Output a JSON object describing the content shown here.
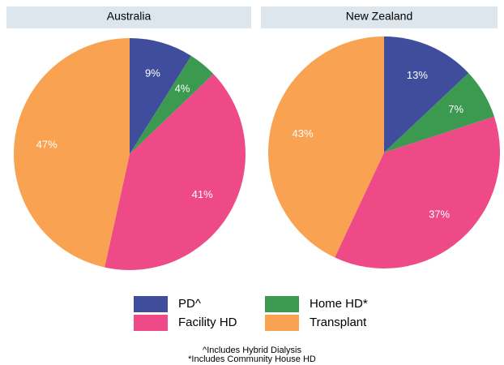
{
  "chart_data": [
    {
      "type": "pie",
      "title": "Australia",
      "categories": [
        "PD^",
        "Home HD*",
        "Facility HD",
        "Transplant"
      ],
      "values": [
        9,
        4,
        41,
        47
      ],
      "value_labels": [
        "9%",
        "4%",
        "41%",
        "47%"
      ],
      "colors": [
        "#3f4d9c",
        "#3c9a50",
        "#ee4a87",
        "#f9a352"
      ]
    },
    {
      "type": "pie",
      "title": "New Zealand",
      "categories": [
        "PD^",
        "Home HD*",
        "Facility HD",
        "Transplant"
      ],
      "values": [
        13,
        7,
        37,
        43
      ],
      "value_labels": [
        "13%",
        "7%",
        "37%",
        "43%"
      ],
      "colors": [
        "#3f4d9c",
        "#3c9a50",
        "#ee4a87",
        "#f9a352"
      ]
    }
  ],
  "footnotes": [
    "^Includes Hybrid Dialysis",
    "*Includes Community House HD"
  ]
}
